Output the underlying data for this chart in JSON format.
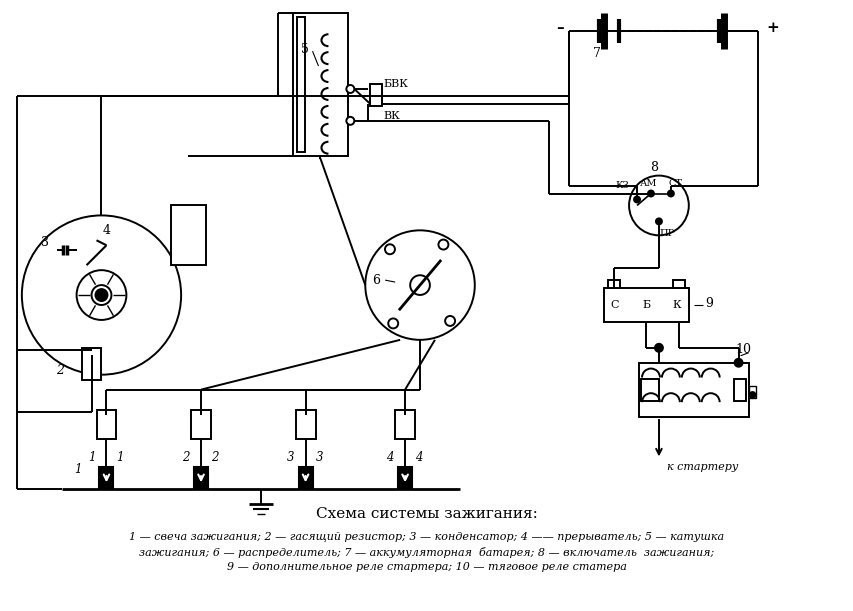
{
  "title": "Схема системы зажигания:",
  "caption_line1": "1 — свеча зажигания; 2 — гасящий резистор; 3 — конденсатор; 4 —— прерыватель; 5 — катушка",
  "caption_line2": "зажигания; 6 — распределитель; 7 — аккумуляторная  батарея; 8 — включатель  зажигания;",
  "caption_line3": "9 — дополнительное реле стартера; 10 — тяговое реле статера",
  "bg_color": "#ffffff",
  "line_color": "#000000"
}
